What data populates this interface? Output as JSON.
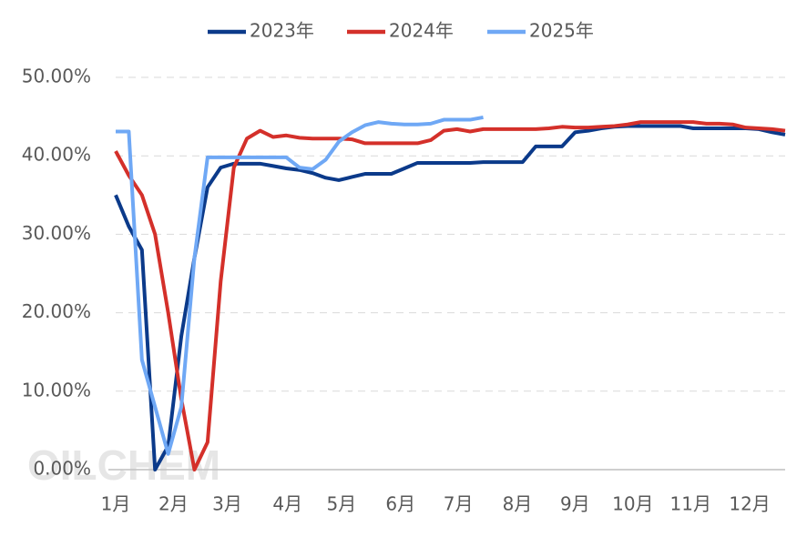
{
  "chart_data": {
    "type": "line",
    "watermark": "OILCHEM",
    "x": [
      1,
      2,
      3,
      4,
      5,
      6,
      7,
      8,
      9,
      10,
      11,
      12,
      13,
      14,
      15,
      16,
      17,
      18,
      19,
      20,
      21,
      22,
      23,
      24,
      25,
      26,
      27,
      28,
      29,
      30,
      31,
      32,
      33,
      34,
      35,
      36,
      37,
      38,
      39,
      40,
      41,
      42,
      43,
      44,
      45,
      46,
      47,
      48,
      49,
      50,
      51,
      52
    ],
    "xlim": [
      1,
      52
    ],
    "xticks": [
      {
        "value": 1,
        "label": "1月"
      },
      {
        "value": 5.4,
        "label": "2月"
      },
      {
        "value": 9.5,
        "label": "3月"
      },
      {
        "value": 14.1,
        "label": "4月"
      },
      {
        "value": 18.2,
        "label": "5月"
      },
      {
        "value": 22.7,
        "label": "6月"
      },
      {
        "value": 27.1,
        "label": "7月"
      },
      {
        "value": 31.6,
        "label": "8月"
      },
      {
        "value": 36.0,
        "label": "9月"
      },
      {
        "value": 40.4,
        "label": "10月"
      },
      {
        "value": 44.8,
        "label": "11月"
      },
      {
        "value": 49.3,
        "label": "12月"
      }
    ],
    "ylim": [
      0,
      50
    ],
    "yticks": [
      {
        "value": 0,
        "label": "0.00%"
      },
      {
        "value": 10,
        "label": "10.00%"
      },
      {
        "value": 20,
        "label": "20.00%"
      },
      {
        "value": 30,
        "label": "30.00%"
      },
      {
        "value": 40,
        "label": "40.00%"
      },
      {
        "value": 50,
        "label": "50.00%"
      }
    ],
    "grid": true,
    "legend": "top",
    "series": [
      {
        "name": "2023年",
        "color": "#0b3a8a",
        "values": [
          35,
          31,
          28,
          0,
          3,
          17,
          27,
          36,
          38.5,
          39,
          39,
          39,
          38.7,
          38.4,
          38.2,
          37.8,
          37.2,
          36.9,
          37.3,
          37.7,
          37.7,
          37.7,
          38.4,
          39.1,
          39.1,
          39.1,
          39.1,
          39.1,
          39.2,
          39.2,
          39.2,
          39.2,
          41.2,
          41.2,
          41.2,
          43.0,
          43.2,
          43.5,
          43.7,
          43.8,
          43.8,
          43.8,
          43.8,
          43.8,
          43.5,
          43.5,
          43.5,
          43.5,
          43.5,
          43.4,
          43.0,
          42.7
        ]
      },
      {
        "name": "2024年",
        "color": "#d4302a",
        "values": [
          40.6,
          37.5,
          35,
          30,
          20,
          9,
          0,
          3.5,
          24,
          38.5,
          42.2,
          43.2,
          42.4,
          42.6,
          42.3,
          42.2,
          42.2,
          42.2,
          42.1,
          41.6,
          41.6,
          41.6,
          41.6,
          41.6,
          42.0,
          43.2,
          43.4,
          43.1,
          43.4,
          43.4,
          43.4,
          43.4,
          43.4,
          43.5,
          43.7,
          43.6,
          43.6,
          43.7,
          43.8,
          44.0,
          44.3,
          44.3,
          44.3,
          44.3,
          44.3,
          44.1,
          44.1,
          44.0,
          43.6,
          43.5,
          43.4,
          43.2
        ]
      },
      {
        "name": "2025年",
        "color": "#6fa8f5",
        "values": [
          43.1,
          43.1,
          14,
          8,
          2,
          8,
          27,
          39.8,
          39.8,
          39.8,
          39.8,
          39.8,
          39.8,
          39.8,
          38.5,
          38.3,
          39.5,
          41.8,
          43.0,
          43.9,
          44.3,
          44.1,
          44.0,
          44.0,
          44.1,
          44.6,
          44.6,
          44.6,
          44.9,
          null,
          null,
          null,
          null,
          null,
          null,
          null,
          null,
          null,
          null,
          null,
          null,
          null,
          null,
          null,
          null,
          null,
          null,
          null,
          null,
          null,
          null,
          null
        ]
      }
    ]
  }
}
